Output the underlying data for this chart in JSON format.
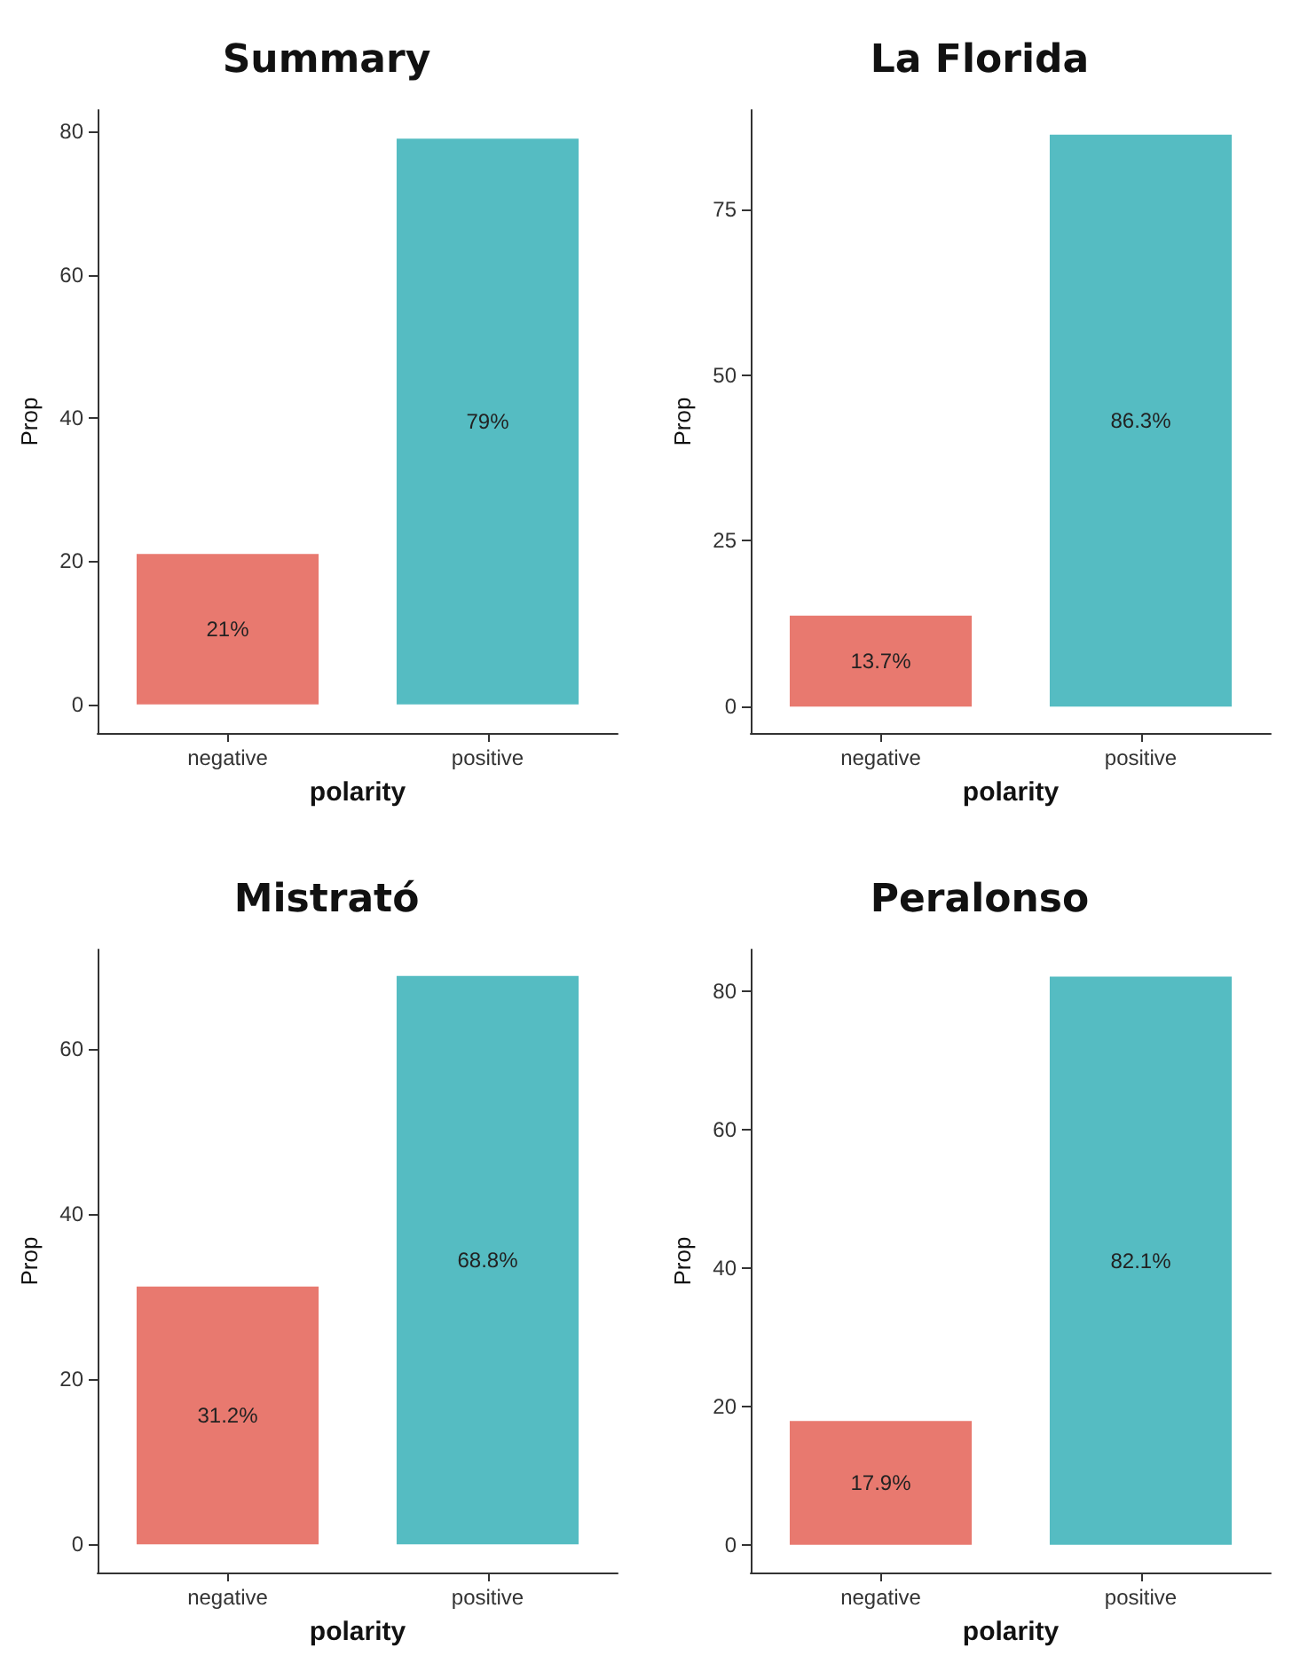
{
  "chart_data": [
    {
      "type": "bar",
      "title": "Summary",
      "xlabel": "polarity",
      "ylabel": "Prop",
      "categories": [
        "negative",
        "positive"
      ],
      "values": [
        21,
        79
      ],
      "value_labels": [
        "21%",
        "79%"
      ],
      "colors": [
        "#e8796f",
        "#55bcc2"
      ],
      "ylim": [
        -4,
        83
      ],
      "yticks": [
        0,
        20,
        40,
        60,
        80
      ],
      "grid": false
    },
    {
      "type": "bar",
      "title": "La Florida",
      "xlabel": "polarity",
      "ylabel": "Prop",
      "categories": [
        "negative",
        "positive"
      ],
      "values": [
        13.7,
        86.3
      ],
      "value_labels": [
        "13.7%",
        "86.3%"
      ],
      "colors": [
        "#e8796f",
        "#55bcc2"
      ],
      "ylim": [
        -4,
        90
      ],
      "yticks": [
        0,
        25,
        50,
        75
      ],
      "grid": false
    },
    {
      "type": "bar",
      "title": "Mistrató",
      "xlabel": "polarity",
      "ylabel": "Prop",
      "categories": [
        "negative",
        "positive"
      ],
      "values": [
        31.2,
        68.8
      ],
      "value_labels": [
        "31.2%",
        "68.8%"
      ],
      "colors": [
        "#e8796f",
        "#55bcc2"
      ],
      "ylim": [
        -3.4,
        72
      ],
      "yticks": [
        0,
        20,
        40,
        60
      ],
      "grid": false
    },
    {
      "type": "bar",
      "title": "Peralonso",
      "xlabel": "polarity",
      "ylabel": "Prop",
      "categories": [
        "negative",
        "positive"
      ],
      "values": [
        17.9,
        82.1
      ],
      "value_labels": [
        "17.9%",
        "82.1%"
      ],
      "colors": [
        "#e8796f",
        "#55bcc2"
      ],
      "ylim": [
        -4,
        86
      ],
      "yticks": [
        0,
        20,
        40,
        60,
        80
      ],
      "grid": false
    }
  ]
}
